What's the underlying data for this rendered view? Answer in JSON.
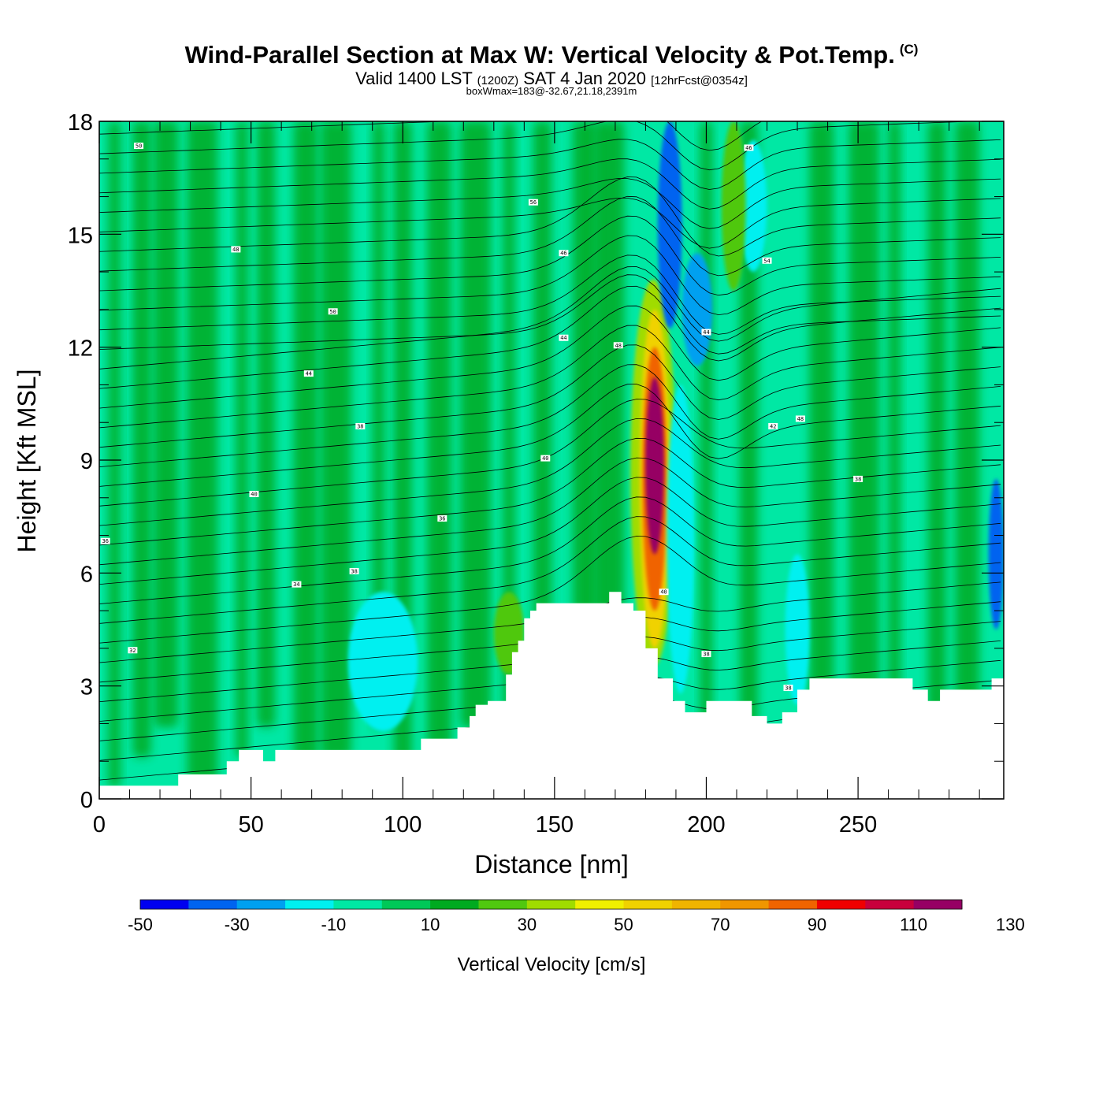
{
  "header": {
    "title": "Wind-Parallel Section at Max W: Vertical Velocity & Pot.Temp.",
    "copyright": "(C)",
    "sub_a": "Valid 1400 LST",
    "sub_b": "(1200Z)",
    "sub_c": "SAT 4 Jan 2020",
    "sub_d": "[12hrFcst@0354z]",
    "sub_e": "boxWmax=183@-32.67,21.18,2391m"
  },
  "colors": {
    "background_fill": "#00e8a4",
    "plot_frame": "#000000",
    "contour_line": "#000000"
  },
  "chart_data": {
    "type": "heatmap",
    "xlabel": "Distance [nm]",
    "ylabel": "Height [Kft MSL]",
    "xlim": [
      0,
      298
    ],
    "ylim": [
      0,
      18
    ],
    "xticks": [
      0,
      50,
      100,
      150,
      200,
      250
    ],
    "yticks": [
      0,
      3,
      6,
      9,
      12,
      15,
      18
    ],
    "grid": false,
    "colorbar": {
      "title": "Vertical Velocity [cm/s]",
      "placement": "bottom",
      "levels": [
        -50,
        -40,
        -30,
        -20,
        -10,
        0,
        10,
        20,
        30,
        40,
        50,
        60,
        70,
        80,
        90,
        100,
        110,
        120,
        130
      ],
      "tick_labels": [
        "-50",
        "-30",
        "-10",
        "10",
        "30",
        "50",
        "70",
        "90",
        "110",
        "130"
      ],
      "colors": [
        "#0000f0",
        "#0064f0",
        "#00a0f0",
        "#00f0f0",
        "#00e8a4",
        "#00c858",
        "#00aa20",
        "#50c810",
        "#a0dc00",
        "#f0f000",
        "#f0d200",
        "#f0b400",
        "#f09600",
        "#f06400",
        "#f00000",
        "#c8003c",
        "#960064"
      ]
    },
    "terrain": {
      "x": [
        0,
        26,
        26,
        42,
        42,
        46,
        46,
        50,
        50,
        54,
        54,
        58,
        58,
        65,
        65,
        100,
        100,
        106,
        106,
        118,
        118,
        122,
        122,
        124,
        124,
        128,
        128,
        134,
        134,
        136,
        136,
        138,
        138,
        140,
        140,
        142,
        142,
        144,
        144,
        150,
        150,
        168,
        168,
        172,
        172,
        176,
        176,
        180,
        180,
        184,
        184,
        189,
        189,
        193,
        193,
        200,
        200,
        203,
        203,
        209,
        209,
        215,
        215,
        220,
        220,
        225,
        225,
        230,
        230,
        234,
        234,
        242,
        242,
        268,
        268,
        273,
        273,
        277,
        277,
        294,
        294,
        298
      ],
      "height": [
        0.35,
        0.35,
        0.65,
        0.65,
        1.0,
        1.0,
        1.3,
        1.3,
        1.3,
        1.3,
        1.0,
        1.0,
        1.3,
        1.3,
        1.3,
        1.3,
        1.3,
        1.3,
        1.6,
        1.6,
        1.9,
        1.9,
        2.2,
        2.2,
        2.5,
        2.5,
        2.6,
        2.6,
        3.3,
        3.3,
        3.9,
        3.9,
        4.2,
        4.2,
        4.8,
        4.8,
        5.0,
        5.0,
        5.2,
        5.2,
        5.2,
        5.2,
        5.5,
        5.5,
        5.2,
        5.2,
        5.0,
        5.0,
        4.0,
        4.0,
        3.2,
        3.2,
        2.6,
        2.6,
        2.3,
        2.3,
        2.6,
        2.6,
        2.6,
        2.6,
        2.6,
        2.6,
        2.2,
        2.2,
        2.0,
        2.0,
        2.3,
        2.3,
        2.9,
        2.9,
        3.2,
        3.2,
        3.2,
        3.2,
        2.9,
        2.9,
        2.6,
        2.6,
        2.9,
        2.9,
        3.2,
        3.2
      ]
    },
    "w_features": [
      {
        "x": [
          175,
          190
        ],
        "z": [
          3.5,
          13.8
        ],
        "w": 30,
        "desc_ref": "updraft envelope"
      },
      {
        "x": [
          178,
          188
        ],
        "z": [
          4.0,
          13.0
        ],
        "w": 55
      },
      {
        "x": [
          179,
          187
        ],
        "z": [
          5.0,
          12.0
        ],
        "w": 85
      },
      {
        "x": [
          180,
          186
        ],
        "z": [
          6.5,
          11.2
        ],
        "w": 110
      },
      {
        "x": [
          181,
          185
        ],
        "z": [
          7.5,
          10.6
        ],
        "w": 125
      },
      {
        "x": [
          187,
          196
        ],
        "z": [
          2.8,
          11.0
        ],
        "w": -15
      },
      {
        "x": [
          184,
          192
        ],
        "z": [
          12.5,
          18.0
        ],
        "w": -35
      },
      {
        "x": [
          192,
          202
        ],
        "z": [
          11.5,
          14.5
        ],
        "w": -30
      },
      {
        "x": [
          211,
          220
        ],
        "z": [
          14.0,
          17.5
        ],
        "w": -12
      },
      {
        "x": [
          82,
          105
        ],
        "z": [
          1.8,
          5.5
        ],
        "w": -12
      },
      {
        "x": [
          226,
          234
        ],
        "z": [
          2.5,
          6.5
        ],
        "w": -12
      },
      {
        "x": [
          293,
          298
        ],
        "z": [
          4.5,
          8.5
        ],
        "w": -38
      },
      {
        "x": [
          205,
          213
        ],
        "z": [
          13.5,
          18.0
        ],
        "w": 28
      },
      {
        "x": [
          130,
          140
        ],
        "z": [
          3.3,
          5.5
        ],
        "w": 25
      }
    ],
    "isentrope_labels": [
      {
        "x": 13,
        "z": 17.35,
        "text": "50"
      },
      {
        "x": 45,
        "z": 14.6,
        "text": "48"
      },
      {
        "x": 143,
        "z": 15.85,
        "text": "56"
      },
      {
        "x": 153,
        "z": 14.5,
        "text": "46"
      },
      {
        "x": 77,
        "z": 12.95,
        "text": "50"
      },
      {
        "x": 153,
        "z": 12.25,
        "text": "44"
      },
      {
        "x": 171,
        "z": 12.05,
        "text": "48"
      },
      {
        "x": 69,
        "z": 11.3,
        "text": "44"
      },
      {
        "x": 86,
        "z": 9.9,
        "text": "38"
      },
      {
        "x": 147,
        "z": 9.05,
        "text": "40"
      },
      {
        "x": 51,
        "z": 8.1,
        "text": "40"
      },
      {
        "x": 113,
        "z": 7.45,
        "text": "36"
      },
      {
        "x": 2,
        "z": 6.85,
        "text": "36"
      },
      {
        "x": 84,
        "z": 6.05,
        "text": "38"
      },
      {
        "x": 65,
        "z": 5.7,
        "text": "34"
      },
      {
        "x": 186,
        "z": 5.5,
        "text": "40"
      },
      {
        "x": 11,
        "z": 3.95,
        "text": "32"
      },
      {
        "x": 200,
        "z": 3.85,
        "text": "38"
      },
      {
        "x": 227,
        "z": 2.95,
        "text": "38"
      },
      {
        "x": 214,
        "z": 17.3,
        "text": "46"
      },
      {
        "x": 220,
        "z": 14.3,
        "text": "54"
      },
      {
        "x": 200,
        "z": 12.4,
        "text": "44"
      },
      {
        "x": 222,
        "z": 9.9,
        "text": "42"
      },
      {
        "x": 231,
        "z": 10.1,
        "text": "48"
      },
      {
        "x": 250,
        "z": 8.5,
        "text": "38"
      }
    ]
  }
}
